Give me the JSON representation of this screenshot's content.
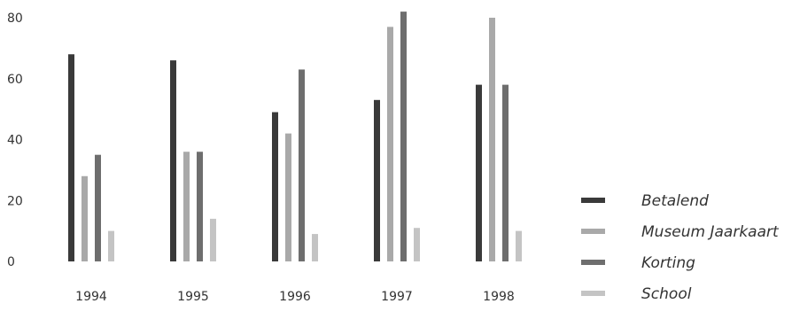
{
  "chart_data": {
    "type": "bar",
    "categories": [
      "1994",
      "1995",
      "1996",
      "1997",
      "1998"
    ],
    "y_ticks": [
      "0",
      "20",
      "40",
      "60",
      "80"
    ],
    "ylim": [
      0,
      80
    ],
    "grid": false,
    "legend_position": "right",
    "series": [
      {
        "name": "Betalend",
        "color": "#3a3a3a",
        "values": [
          68,
          66,
          49,
          53,
          58
        ]
      },
      {
        "name": "Museum Jaarkaart",
        "color": "#a9a9a9",
        "values": [
          28,
          36,
          42,
          77,
          80
        ]
      },
      {
        "name": "Korting",
        "color": "#6e6e6e",
        "values": [
          35,
          36,
          63,
          82,
          58
        ]
      },
      {
        "name": "School",
        "color": "#c4c4c4",
        "values": [
          10,
          14,
          9,
          11,
          10
        ]
      }
    ]
  }
}
